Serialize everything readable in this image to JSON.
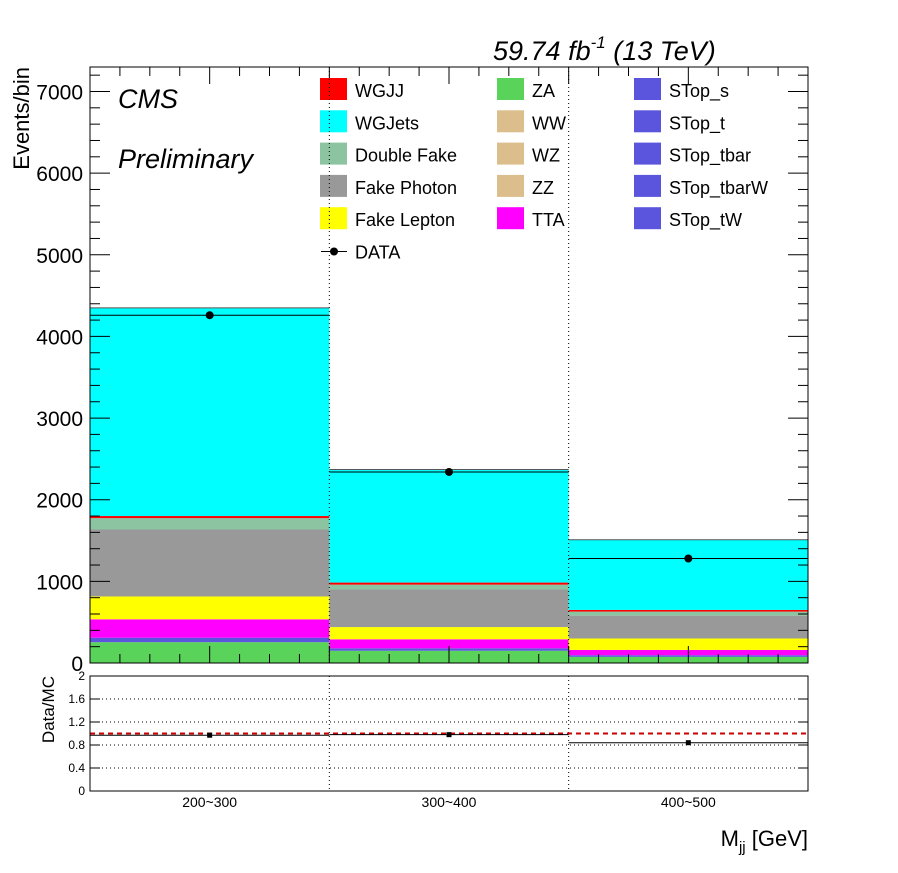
{
  "header": {
    "lumi_main": "59.74 fb",
    "lumi_sup": "-1",
    "lumi_energy": " (13 TeV)",
    "cms": "CMS",
    "preliminary": "Preliminary"
  },
  "chart_data": [
    {
      "type": "bar",
      "stacked": true,
      "categories": [
        "200~300",
        "300~400",
        "400~500"
      ],
      "ylabel": "Events/bin",
      "xlabel_main": "M",
      "xlabel_sub": "jj",
      "xlabel_unit": " [GeV]",
      "ylim": [
        0,
        7300
      ],
      "yticks": [
        0,
        1000,
        2000,
        3000,
        4000,
        5000,
        6000,
        7000
      ],
      "grid": false,
      "series": [
        {
          "name": "ZA",
          "color": "#5ad35a",
          "values": [
            255,
            150,
            75
          ]
        },
        {
          "name": "WW",
          "color": "#dcbe8c",
          "values": [
            0,
            0,
            0
          ]
        },
        {
          "name": "WZ",
          "color": "#dcbe8c",
          "values": [
            0,
            0,
            0
          ]
        },
        {
          "name": "ZZ",
          "color": "#dcbe8c",
          "values": [
            0,
            0,
            0
          ]
        },
        {
          "name": "STop_s",
          "color": "#5a55dc",
          "values": [
            0,
            0,
            0
          ]
        },
        {
          "name": "STop_t",
          "color": "#5a55dc",
          "values": [
            0,
            0,
            0
          ]
        },
        {
          "name": "STop_tbar",
          "color": "#5a55dc",
          "values": [
            0,
            0,
            0
          ]
        },
        {
          "name": "STop_tbarW",
          "color": "#5a55dc",
          "values": [
            0,
            0,
            0
          ]
        },
        {
          "name": "STop_tW",
          "color": "#5a55dc",
          "values": [
            55,
            30,
            20
          ]
        },
        {
          "name": "TTA",
          "color": "#ff00ff",
          "values": [
            225,
            110,
            65
          ]
        },
        {
          "name": "Fake Lepton",
          "color": "#ffff00",
          "values": [
            280,
            150,
            140
          ]
        },
        {
          "name": "Fake Photon",
          "color": "#999999",
          "values": [
            820,
            460,
            280
          ]
        },
        {
          "name": "Double Fake",
          "color": "#8cc3a0",
          "values": [
            140,
            60,
            50
          ]
        },
        {
          "name": "WGJJ",
          "color": "#ff0000",
          "values": [
            25,
            25,
            20
          ]
        },
        {
          "name": "WGJets",
          "color": "#00ffff",
          "values": [
            2550,
            1385,
            860
          ]
        }
      ],
      "data": {
        "name": "DATA",
        "values": [
          4260,
          2340,
          1280
        ]
      }
    },
    {
      "type": "scatter",
      "categories": [
        "200~300",
        "300~400",
        "400~500"
      ],
      "ylabel": "Data/MC",
      "ylim": [
        0,
        2
      ],
      "yticks": [
        0,
        0.4,
        0.8,
        1.2,
        1.6,
        2
      ],
      "ytick_labels": [
        "0",
        "0.4",
        "0.8",
        "1.2",
        "1.6",
        "2"
      ],
      "grid": true,
      "reference_line": {
        "value": 1,
        "color": "#cc0000",
        "style": "dashed"
      },
      "values": [
        0.97,
        0.98,
        0.84
      ]
    }
  ],
  "legend": {
    "columns": [
      [
        {
          "name": "WGJJ",
          "color": "#ff0000",
          "kind": "box"
        },
        {
          "name": "WGJets",
          "color": "#00ffff",
          "kind": "box"
        },
        {
          "name": "Double Fake",
          "color": "#8cc3a0",
          "kind": "box"
        },
        {
          "name": "Fake Photon",
          "color": "#999999",
          "kind": "box"
        },
        {
          "name": "Fake Lepton",
          "color": "#ffff00",
          "kind": "box"
        },
        {
          "name": "DATA",
          "color": "#000000",
          "kind": "marker"
        }
      ],
      [
        {
          "name": "ZA",
          "color": "#5ad35a",
          "kind": "box"
        },
        {
          "name": "WW",
          "color": "#dcbe8c",
          "kind": "box"
        },
        {
          "name": "WZ",
          "color": "#dcbe8c",
          "kind": "box"
        },
        {
          "name": "ZZ",
          "color": "#dcbe8c",
          "kind": "box"
        },
        {
          "name": "TTA",
          "color": "#ff00ff",
          "kind": "box"
        }
      ],
      [
        {
          "name": "STop_s",
          "color": "#5a55dc",
          "kind": "box"
        },
        {
          "name": "STop_t",
          "color": "#5a55dc",
          "kind": "box"
        },
        {
          "name": "STop_tbar",
          "color": "#5a55dc",
          "kind": "box"
        },
        {
          "name": "STop_tbarW",
          "color": "#5a55dc",
          "kind": "box"
        },
        {
          "name": "STop_tW",
          "color": "#5a55dc",
          "kind": "box"
        }
      ]
    ]
  }
}
